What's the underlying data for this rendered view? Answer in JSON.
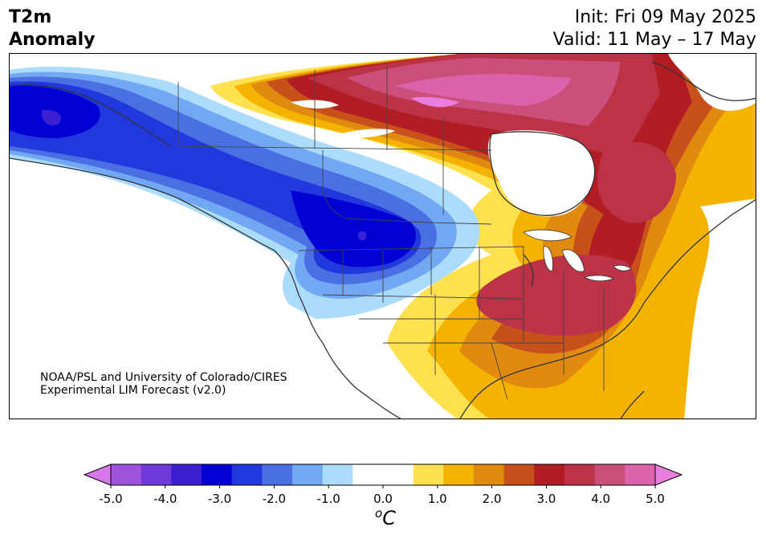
{
  "header": {
    "title_line1": "T2m",
    "title_line2": "Anomaly",
    "init_text": "Init: Fri 09 May 2025",
    "valid_text": "Valid: 11 May – 17 May"
  },
  "credit": {
    "line1": "NOAA/PSL and University of Colorado/CIRES",
    "line2": "Experimental LIM Forecast (v2.0)"
  },
  "colorbar": {
    "min": -5.0,
    "max": 5.0,
    "unit_base": "C",
    "unit_super": "o",
    "tick_labels": [
      "-5.0",
      "-4.0",
      "-3.0",
      "-2.0",
      "-1.0",
      "0.0",
      "1.0",
      "2.0",
      "3.0",
      "4.0",
      "5.0"
    ],
    "colors": [
      "#9f53dd",
      "#7039dc",
      "#3a1fd3",
      "#0000d4",
      "#2138dc",
      "#4a6fe3",
      "#72a8f3",
      "#acdcfb",
      "#ffffff",
      "#ffffff",
      "#ffe14f",
      "#f4b300",
      "#e08a10",
      "#c7501b",
      "#b11d22",
      "#bc3247",
      "#cb4f7a",
      "#dc62ab"
    ],
    "under_color": "#d779ea",
    "over_color": "#ea7ede"
  }
}
